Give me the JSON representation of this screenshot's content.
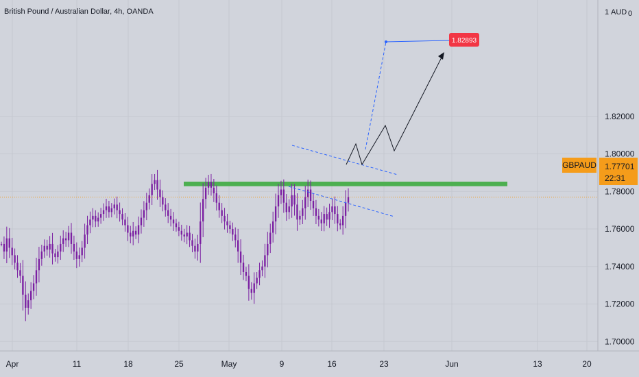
{
  "header": {
    "title": "British Pound / Australian Dollar, 4h, OANDA"
  },
  "price_axis": {
    "currency": "AUD",
    "top_partial": "1",
    "top_partial_right": "0"
  },
  "symbol_tag": {
    "label": "GBPAUD",
    "price": "1.77701",
    "countdown": "22:31",
    "color": "#f59c1a"
  },
  "target_label": {
    "text": "1.82893",
    "color": "#f23645"
  },
  "colors": {
    "up": "#26a69a",
    "down": "#ef5350",
    "candle": "#7b1fa2",
    "zone": "#4caf50",
    "projection": "#2962ff"
  },
  "chart_data": {
    "type": "candlestick",
    "title": "British Pound / Australian Dollar, 4h, OANDA",
    "xlabel": "",
    "ylabel": "AUD",
    "ylim": [
      1.695,
      1.882
    ],
    "y_ticks": [
      "1.82000",
      "1.80000",
      "1.78000",
      "1.76000",
      "1.74000",
      "1.72000",
      "1.70000"
    ],
    "x_ticks": [
      "Apr",
      "11",
      "18",
      "25",
      "May",
      "9",
      "16",
      "23",
      "Jun",
      "13",
      "20"
    ],
    "last_price": 1.77701,
    "resistance_zone": [
      1.7828,
      1.7852
    ],
    "target_price": 1.82893,
    "series": [
      {
        "kind": "price",
        "values": [
          1.752,
          1.748,
          1.755,
          1.75,
          1.746,
          1.742,
          1.738,
          1.735,
          1.725,
          1.718,
          1.722,
          1.727,
          1.731,
          1.738,
          1.744,
          1.748,
          1.751,
          1.749,
          1.752,
          1.747,
          1.745,
          1.748,
          1.752,
          1.755,
          1.754,
          1.758,
          1.752,
          1.748,
          1.744,
          1.746,
          1.75,
          1.757,
          1.762,
          1.765,
          1.767,
          1.764,
          1.766,
          1.768,
          1.77,
          1.772,
          1.769,
          1.771,
          1.773,
          1.77,
          1.768,
          1.765,
          1.762,
          1.758,
          1.756,
          1.759,
          1.757,
          1.762,
          1.766,
          1.77,
          1.774,
          1.778,
          1.784,
          1.786,
          1.781,
          1.777,
          1.773,
          1.77,
          1.767,
          1.765,
          1.763,
          1.761,
          1.759,
          1.757,
          1.756,
          1.758,
          1.754,
          1.751,
          1.748,
          1.752,
          1.764,
          1.776,
          1.782,
          1.785,
          1.782,
          1.779,
          1.774,
          1.77,
          1.767,
          1.764,
          1.762,
          1.76,
          1.757,
          1.754,
          1.748,
          1.742,
          1.737,
          1.735,
          1.728,
          1.726,
          1.731,
          1.734,
          1.738,
          1.74,
          1.746,
          1.752,
          1.758,
          1.764,
          1.772,
          1.778,
          1.781,
          1.774,
          1.769,
          1.772,
          1.778,
          1.773,
          1.765,
          1.767,
          1.771,
          1.777,
          1.781,
          1.775,
          1.771,
          1.767,
          1.765,
          1.763,
          1.768,
          1.765,
          1.769,
          1.772,
          1.768,
          1.763,
          1.762,
          1.767,
          1.774,
          1.777
        ]
      }
    ]
  }
}
